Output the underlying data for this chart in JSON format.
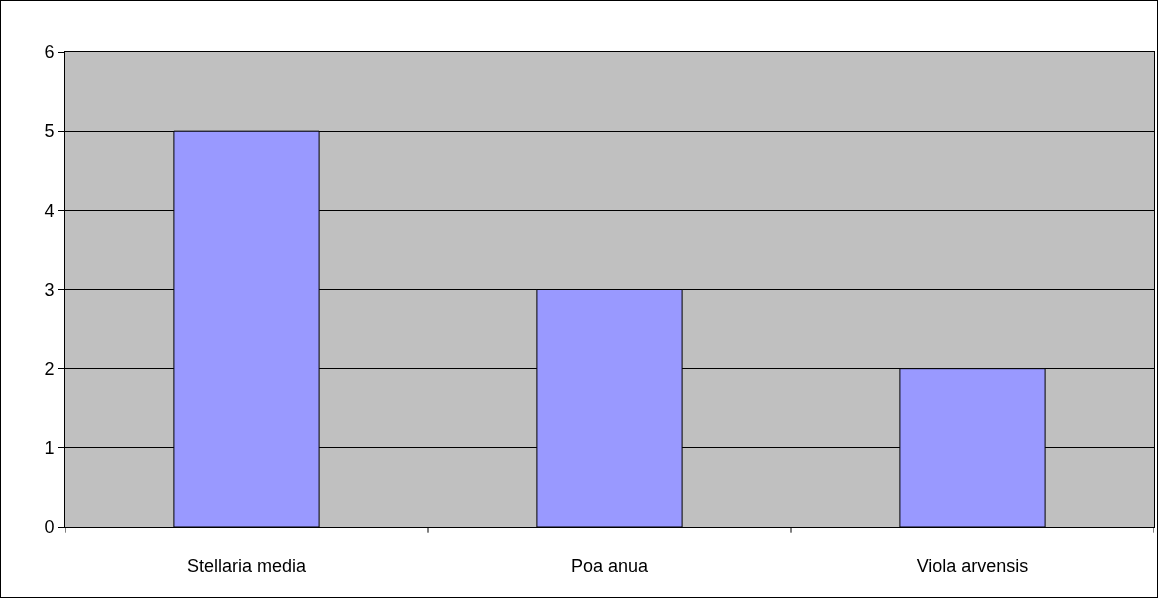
{
  "chart_data": {
    "type": "bar",
    "categories": [
      "Stellaria media",
      "Poa anua",
      "Viola arvensis"
    ],
    "values": [
      5,
      3,
      2
    ],
    "color": "#9999ff",
    "ylim": [
      0,
      6
    ],
    "yticks": [
      0,
      1,
      2,
      3,
      4,
      5,
      6
    ],
    "grid": "y"
  }
}
